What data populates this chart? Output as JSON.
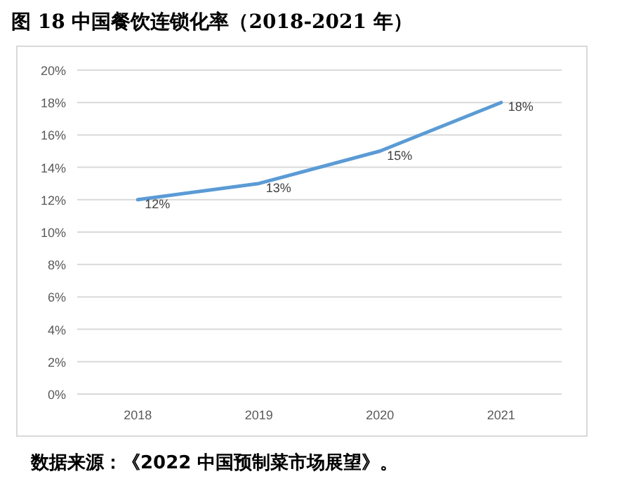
{
  "chart_data": {
    "type": "line",
    "title": "图 18 中国餐饮连锁化率（2018-2021 年）",
    "categories": [
      "2018",
      "2019",
      "2020",
      "2021"
    ],
    "series": [
      {
        "color": "#5b9bd5",
        "values": [
          12,
          13,
          15,
          18
        ],
        "value_labels": [
          "12%",
          "13%",
          "15%",
          "18%"
        ]
      }
    ],
    "ylim": [
      0,
      20
    ],
    "yticks": [
      {
        "value": 0,
        "label": "0%"
      },
      {
        "value": 2,
        "label": "2%"
      },
      {
        "value": 4,
        "label": "4%"
      },
      {
        "value": 6,
        "label": "6%"
      },
      {
        "value": 8,
        "label": "8%"
      },
      {
        "value": 10,
        "label": "10%"
      },
      {
        "value": 12,
        "label": "12%"
      },
      {
        "value": 14,
        "label": "14%"
      },
      {
        "value": 16,
        "label": "16%"
      },
      {
        "value": 18,
        "label": "18%"
      },
      {
        "value": 20,
        "label": "20%"
      }
    ],
    "grid": "y",
    "marker": "none",
    "line_style": "solid",
    "annotations": [
      "数据来源：《2022 中国预制菜市场展望》。"
    ]
  }
}
